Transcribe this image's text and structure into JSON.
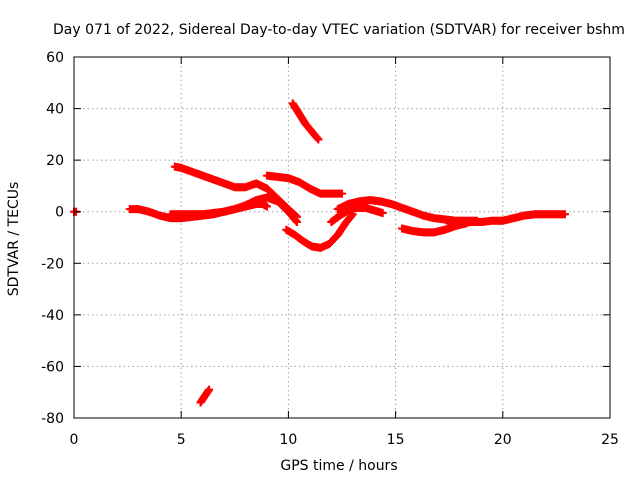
{
  "chart_data": {
    "type": "scatter",
    "title": "Day 071 of 2022, Sidereal Day-to-day VTEC variation (SDTVAR) for receiver bshm",
    "xlabel": "GPS time / hours",
    "ylabel": "SDTVAR / TECUs",
    "xlim": [
      0,
      25
    ],
    "ylim": [
      -80,
      60
    ],
    "x_ticks": [
      0,
      5,
      10,
      15,
      20,
      25
    ],
    "y_ticks": [
      -80,
      -60,
      -40,
      -20,
      0,
      20,
      40,
      60
    ],
    "x_tick_labels": [
      "0",
      "5",
      "10",
      "15",
      "20",
      "25"
    ],
    "y_tick_labels": [
      "-80",
      "-60",
      "-40",
      "-20",
      "0",
      "20",
      "40",
      "60"
    ],
    "grid": true,
    "marker": "plus",
    "color": "#ff0000",
    "series": [
      {
        "name": "arc-1",
        "x": [
          0.0,
          0.05,
          0.1
        ],
        "y": [
          0.0,
          0.0,
          0.0
        ]
      },
      {
        "name": "arc-2",
        "x": [
          2.6,
          3.0,
          3.5,
          4.0,
          4.5,
          5.0,
          5.5,
          6.0,
          6.5,
          7.0,
          7.5,
          8.0,
          8.5,
          9.0,
          9.5,
          10.0,
          10.4
        ],
        "y": [
          1.0,
          1.0,
          0.0,
          -1.5,
          -2.5,
          -2.5,
          -2.0,
          -1.5,
          -1.0,
          0.0,
          1.0,
          2.5,
          4.5,
          5.5,
          4.0,
          0.0,
          -4.0
        ]
      },
      {
        "name": "arc-3",
        "x": [
          4.7,
          5.0,
          5.5,
          6.0,
          6.5,
          7.0,
          7.5,
          8.0,
          8.5,
          9.0,
          9.5,
          10.0,
          10.4
        ],
        "y": [
          17.5,
          17.0,
          15.5,
          14.0,
          12.5,
          11.0,
          9.5,
          9.5,
          11.0,
          9.0,
          5.0,
          1.0,
          -2.0
        ]
      },
      {
        "name": "arc-4",
        "x": [
          4.5,
          5.0,
          5.5,
          6.0,
          6.5,
          7.0,
          7.5,
          8.0,
          8.5,
          8.8,
          9.0
        ],
        "y": [
          -1.0,
          -1.0,
          -1.0,
          -1.0,
          -0.5,
          0.0,
          1.0,
          2.0,
          3.0,
          3.0,
          2.0
        ]
      },
      {
        "name": "arc-5",
        "x": [
          9.0,
          9.5,
          10.0,
          10.5,
          11.0,
          11.5,
          12.0,
          12.5
        ],
        "y": [
          14.0,
          13.5,
          13.0,
          11.5,
          9.0,
          7.0,
          7.0,
          7.0
        ]
      },
      {
        "name": "arc-6",
        "x": [
          10.2,
          10.5,
          10.8,
          11.1,
          11.4
        ],
        "y": [
          42.0,
          38.0,
          34.0,
          31.0,
          28.0
        ]
      },
      {
        "name": "arc-7",
        "x": [
          9.9,
          10.3,
          10.7,
          11.1,
          11.5,
          11.9,
          12.3,
          12.7,
          13.0
        ],
        "y": [
          -7.0,
          -9.0,
          -11.5,
          -13.5,
          -14.0,
          -12.5,
          -9.0,
          -4.0,
          -1.0
        ]
      },
      {
        "name": "arc-8",
        "x": [
          12.0,
          12.4,
          12.8,
          13.2,
          13.6,
          14.0,
          14.4
        ],
        "y": [
          -4.0,
          -1.5,
          0.5,
          1.5,
          1.5,
          0.5,
          -0.5
        ]
      },
      {
        "name": "arc-9",
        "x": [
          12.3,
          12.8,
          13.3,
          13.8,
          14.3,
          14.8,
          15.3,
          15.8,
          16.3,
          16.8,
          17.3,
          17.8,
          18.3,
          18.8
        ],
        "y": [
          1.0,
          3.0,
          4.0,
          4.5,
          4.0,
          3.0,
          1.5,
          0.0,
          -1.5,
          -2.5,
          -3.0,
          -3.5,
          -3.5,
          -3.5
        ]
      },
      {
        "name": "arc-10",
        "x": [
          15.3,
          15.8,
          16.3,
          16.8,
          17.3,
          17.8,
          18.3
        ],
        "y": [
          -6.5,
          -7.5,
          -8.0,
          -8.0,
          -7.0,
          -5.5,
          -4.5
        ]
      },
      {
        "name": "arc-11",
        "x": [
          17.5,
          18.0,
          18.5,
          19.0,
          19.5,
          20.0,
          20.5,
          21.0,
          21.5,
          22.0,
          22.5,
          22.9
        ],
        "y": [
          -4.5,
          -4.5,
          -4.0,
          -4.0,
          -3.5,
          -3.5,
          -2.5,
          -1.5,
          -1.0,
          -1.0,
          -1.0,
          -1.0
        ]
      },
      {
        "name": "arc-12",
        "x": [
          5.9,
          6.1,
          6.3
        ],
        "y": [
          -74.0,
          -71.5,
          -69.0
        ]
      }
    ]
  }
}
